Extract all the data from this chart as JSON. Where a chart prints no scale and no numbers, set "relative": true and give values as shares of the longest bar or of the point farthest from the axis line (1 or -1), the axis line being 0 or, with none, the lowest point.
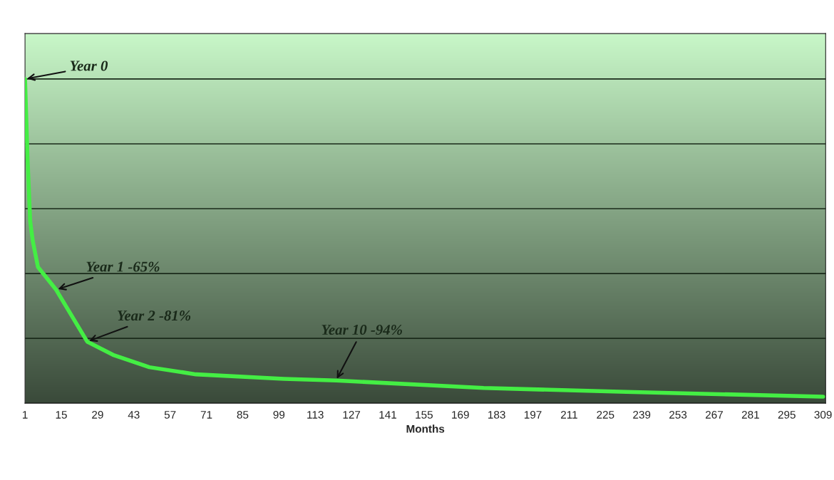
{
  "chart_data": {
    "type": "line",
    "relative": true,
    "xlabel": "Months",
    "x": [
      1,
      2,
      3,
      4,
      6,
      13,
      25,
      35,
      49,
      67,
      101,
      121,
      178,
      233,
      309
    ],
    "series": [
      {
        "color": "#44ee44",
        "values": [
          1.0,
          0.75,
          0.56,
          0.5,
          0.42,
          0.35,
          0.19,
          0.149,
          0.111,
          0.089,
          0.075,
          0.07,
          0.047,
          0.035,
          0.02
        ]
      }
    ],
    "xlim": [
      1,
      310
    ],
    "xticks": [
      1,
      15,
      29,
      43,
      57,
      71,
      85,
      99,
      113,
      127,
      141,
      155,
      169,
      183,
      197,
      211,
      225,
      239,
      253,
      267,
      281,
      295,
      309
    ],
    "annotations": [
      {
        "text": "Year 0",
        "x": 1,
        "y": 1.0
      },
      {
        "text": "Year 1 -65%",
        "x": 13,
        "y": 0.35
      },
      {
        "text": "Year 2 -81%",
        "x": 25,
        "y": 0.19
      },
      {
        "text": "Year 10 -94%",
        "x": 121,
        "y": 0.07
      }
    ],
    "grid": "y",
    "tick_labels": "x",
    "marker": "none",
    "line_style": "solid"
  }
}
